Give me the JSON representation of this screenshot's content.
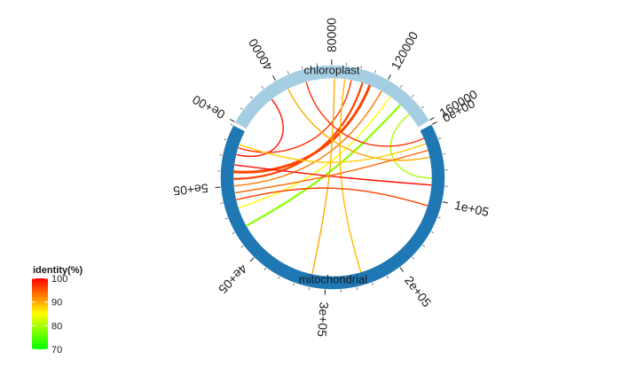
{
  "chart_data": {
    "type": "circos",
    "title": "",
    "sectors": [
      {
        "name": "chloroplast",
        "start": 0,
        "end": 160000,
        "color": "#a6cee3",
        "tick_labels": [
          "0e+00",
          "40000",
          "80000",
          "120000",
          "160000"
        ]
      },
      {
        "name": "mitochondrial",
        "start": 0,
        "end": 580000,
        "color": "#1f78b4",
        "tick_labels": [
          "0e+00",
          "1e+05",
          "2e+05",
          "3e+05",
          "4e+05",
          "5e+05"
        ]
      }
    ],
    "links": [
      {
        "from": {
          "sector": "chloroplast",
          "pos": 148000
        },
        "to": {
          "sector": "mitochondrial",
          "pos": 70000
        },
        "identity": 80,
        "width": 1
      },
      {
        "from": {
          "sector": "chloroplast",
          "pos": 138000
        },
        "to": {
          "sector": "mitochondrial",
          "pos": 440000
        },
        "identity": 78,
        "width": 2
      },
      {
        "from": {
          "sector": "chloroplast",
          "pos": 128000
        },
        "to": {
          "sector": "mitochondrial",
          "pos": 468000
        },
        "identity": 85,
        "width": 1
      },
      {
        "from": {
          "sector": "chloroplast",
          "pos": 120000
        },
        "to": {
          "sector": "mitochondrial",
          "pos": 500000
        },
        "identity": 93,
        "width": 1
      },
      {
        "from": {
          "sector": "chloroplast",
          "pos": 110000
        },
        "to": {
          "sector": "mitochondrial",
          "pos": 520000
        },
        "identity": 96,
        "width": 3
      },
      {
        "from": {
          "sector": "chloroplast",
          "pos": 104000
        },
        "to": {
          "sector": "mitochondrial",
          "pos": 510000
        },
        "identity": 96,
        "width": 2
      },
      {
        "from": {
          "sector": "chloroplast",
          "pos": 95000
        },
        "to": {
          "sector": "mitochondrial",
          "pos": 555000
        },
        "identity": 97,
        "width": 1
      },
      {
        "from": {
          "sector": "chloroplast",
          "pos": 90000
        },
        "to": {
          "sector": "mitochondrial",
          "pos": 250000
        },
        "identity": 89,
        "width": 1
      },
      {
        "from": {
          "sector": "chloroplast",
          "pos": 82000
        },
        "to": {
          "sector": "mitochondrial",
          "pos": 320000
        },
        "identity": 90,
        "width": 1
      },
      {
        "from": {
          "sector": "chloroplast",
          "pos": 60000
        },
        "to": {
          "sector": "mitochondrial",
          "pos": 12000
        },
        "identity": 97,
        "width": 1
      },
      {
        "from": {
          "sector": "chloroplast",
          "pos": 45000
        },
        "to": {
          "sector": "mitochondrial",
          "pos": 40000
        },
        "identity": 90,
        "width": 1
      },
      {
        "from": {
          "sector": "chloroplast",
          "pos": 30000
        },
        "to": {
          "sector": "mitochondrial",
          "pos": 545000
        },
        "identity": 99,
        "width": 1
      },
      {
        "from": {
          "sector": "mitochondrial",
          "pos": 530000
        },
        "to": {
          "sector": "mitochondrial",
          "pos": 80000
        },
        "identity": 99,
        "width": 1
      },
      {
        "from": {
          "sector": "mitochondrial",
          "pos": 480000
        },
        "to": {
          "sector": "mitochondrial",
          "pos": 110000
        },
        "identity": 96,
        "width": 1
      },
      {
        "from": {
          "sector": "mitochondrial",
          "pos": 560000
        },
        "to": {
          "sector": "mitochondrial",
          "pos": 20000
        },
        "identity": 88,
        "width": 1
      },
      {
        "from": {
          "sector": "mitochondrial",
          "pos": 490000
        },
        "to": {
          "sector": "mitochondrial",
          "pos": 30000
        },
        "identity": 94,
        "width": 1
      }
    ],
    "legend": {
      "title": "identity(%)",
      "position": "bottom-left",
      "min": 70,
      "max": 100,
      "ticks": [
        100,
        90,
        80,
        70
      ],
      "colors": [
        "#00ff00",
        "#ffff00",
        "#ff0000"
      ]
    }
  }
}
